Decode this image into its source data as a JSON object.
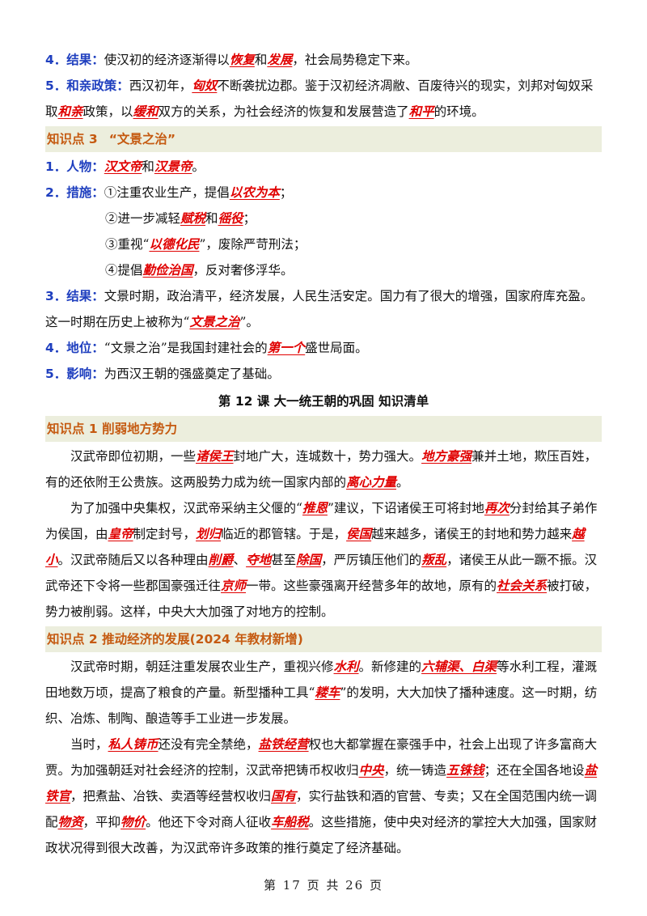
{
  "top": {
    "p4": {
      "label": "4．结果：",
      "t1": "使汉初的经济逐渐得以",
      "k1": "恢复",
      "t2": "和",
      "k2": "发展",
      "t3": "，社会局势稳定下来。"
    },
    "p5": {
      "label": "5．和亲政策：",
      "t1": "西汉初年，",
      "k1": "匈奴",
      "t2": "不断袭扰边郡。鉴于汉初经济凋敝、百废待兴的现实，刘邦对匈奴采取",
      "k2": "和亲",
      "t3": "政策，以",
      "k3": "缓和",
      "t4": "双方的关系，为社会经济的恢复和发展营造了",
      "k4": "和平",
      "t5": "的环境。"
    }
  },
  "kp3": {
    "band_num": "知识点 3",
    "band_title": "“文景之治”",
    "p1": {
      "label": "1．人物：",
      "k1": "汉文帝",
      "t1": "和",
      "k2": "汉景帝",
      "t2": "。"
    },
    "p2": {
      "label": "2．措施：",
      "t1": "①注重农业生产，提倡",
      "k1": "以农为本",
      "t2": "；"
    },
    "p2b": {
      "t1": "②进一步减轻",
      "k1": "赋税",
      "t2": "和",
      "k2": "徭役",
      "t3": "；"
    },
    "p2c": {
      "t1": "③重视“",
      "k1": "以德化民",
      "t2": "”，废除严苛刑法；"
    },
    "p2d": {
      "t1": "④提倡",
      "k1": "勤俭治国",
      "t2": "，反对奢侈浮华。"
    },
    "p3": {
      "label": "3．结果：",
      "t1": "文景时期，政治清平，经济发展，人民生活安定。国力有了很大的增强，国家府库充盈。这一时期在历史上被称为“",
      "k1": "文景之治",
      "t2": "”。"
    },
    "p4": {
      "label": "4．地位：",
      "t1": "“文景之治”是我国封建社会的",
      "k1": "第一个",
      "t2": "盛世局面。"
    },
    "p5": {
      "label": "5．影响：",
      "t1": "为西汉王朝的强盛奠定了基础。"
    }
  },
  "lesson_title": "第 12 课  大一统王朝的巩固  知识清单",
  "kp1": {
    "band": "知识点 1   削弱地方势力",
    "pa": {
      "t1": "汉武帝即位初期，一些",
      "k1": "诸侯王",
      "t2": "封地广大，连城数十，势力强大。",
      "k2": "地方豪强",
      "t3": "兼并土地，欺压百姓，有的还依附王公贵族。这两股势力成为统一国家内部的",
      "k3": "离心力量",
      "t4": "。"
    },
    "pb": {
      "t1": "为了加强中央集权，汉武帝采纳主父偃的“",
      "k1": "推恩",
      "t2": "”建议，下诏诸侯王可将封地",
      "k2": "再次",
      "t3": "分封给其子弟作为侯国，由",
      "k3": "皇帝",
      "t4": "制定封号，",
      "k4": "划归",
      "t5": "临近的郡管辖。于是，",
      "k5": "侯国",
      "t6": "越来越多，诸侯王的封地和势力越来",
      "k6": "越小",
      "t7": "。汉武帝随后又以各种理由",
      "k7": "削爵",
      "t8": "、",
      "k8": "夺地",
      "t9": "甚至",
      "k9": "除国",
      "t10": "，严厉镇压他们的",
      "k10": "叛乱",
      "t11": "，诸侯王从此一蹶不振。汉武帝还下令将一些郡国豪强迁往",
      "k11": "京师",
      "t12": "一带。这些豪强离开经营多年的故地，原有的",
      "k12": "社会关系",
      "t13": "被打破，势力被削弱。这样，中央大大加强了对地方的控制。"
    }
  },
  "kp2": {
    "band": "知识点 2   推动经济的发展(2024 年教材新增)",
    "pa": {
      "t1": "汉武帝时期，朝廷注重发展农业生产，重视兴修",
      "k1": "水利",
      "t2": "。新修建的",
      "k2": "六辅渠、白渠",
      "t3": "等水利工程，灌溉田地数万顷，提高了粮食的产量。新型播种工具“",
      "k3": "耧车",
      "t4": "”的发明，大大加快了播种速度。这一时期，纺织、冶炼、制陶、酿造等手工业进一步发展。"
    },
    "pb": {
      "t1": "当时，",
      "k1": "私人铸币",
      "t2": "还没有完全禁绝，",
      "k2": "盐铁经营",
      "t3": "权也大都掌握在豪强手中，社会上出现了许多富商大贾。为加强朝廷对社会经济的控制，汉武帝把铸币权收归",
      "k3": "中央",
      "t4": "，统一铸造",
      "k4": "五铢钱",
      "t5": "；还在全国各地设",
      "k5": "盐铁官",
      "t6": "，把煮盐、冶铁、卖酒等经营权收归",
      "k6": "国有",
      "t7": "，实行盐铁和酒的官营、专卖；又在全国范围内统一调配",
      "k7": "物资",
      "t8": "，平抑",
      "k8": "物价",
      "t9": "。他还下令对商人征收",
      "k9": "车船税",
      "t10": "。这些措施，使中央对经济的掌控大大加强，国家财政状况得到很大改善，为汉武帝许多政策的推行奠定了经济基础。"
    }
  },
  "footer": "第 17 页 共 26 页"
}
